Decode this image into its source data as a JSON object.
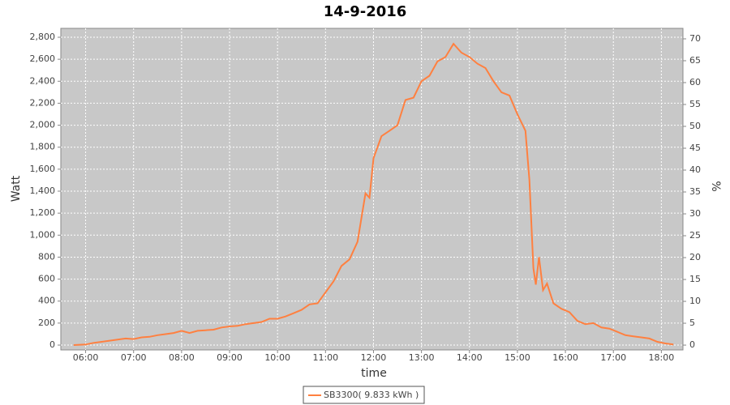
{
  "chart_data": {
    "type": "line",
    "title": "14-9-2016",
    "x_label": "time",
    "y_label": "Watt",
    "y2_label": "%",
    "x": [
      "05:45",
      "06:00",
      "06:10",
      "06:20",
      "06:30",
      "06:40",
      "06:50",
      "07:00",
      "07:10",
      "07:20",
      "07:30",
      "07:40",
      "07:50",
      "08:00",
      "08:10",
      "08:20",
      "08:30",
      "08:40",
      "08:50",
      "09:00",
      "09:10",
      "09:20",
      "09:30",
      "09:40",
      "09:50",
      "10:00",
      "10:10",
      "10:20",
      "10:30",
      "10:40",
      "10:50",
      "11:00",
      "11:10",
      "11:20",
      "11:30",
      "11:40",
      "11:50",
      "11:55",
      "12:00",
      "12:10",
      "12:20",
      "12:30",
      "12:40",
      "12:50",
      "13:00",
      "13:10",
      "13:20",
      "13:30",
      "13:40",
      "13:50",
      "14:00",
      "14:10",
      "14:20",
      "14:30",
      "14:40",
      "14:50",
      "15:00",
      "15:10",
      "15:15",
      "15:20",
      "15:23",
      "15:27",
      "15:32",
      "15:37",
      "15:45",
      "15:55",
      "16:05",
      "16:15",
      "16:25",
      "16:35",
      "16:45",
      "16:55",
      "17:05",
      "17:15",
      "17:25",
      "17:35",
      "17:45",
      "17:55",
      "18:05",
      "18:15"
    ],
    "series": [
      {
        "name": "SB3300( 9.833 kWh )",
        "color": "#ff8040",
        "values": [
          0,
          5,
          20,
          30,
          40,
          50,
          60,
          55,
          70,
          75,
          90,
          100,
          110,
          130,
          110,
          130,
          135,
          140,
          160,
          170,
          175,
          190,
          200,
          210,
          240,
          240,
          260,
          290,
          320,
          370,
          380,
          480,
          580,
          720,
          780,
          940,
          1380,
          1340,
          1700,
          1900,
          1950,
          2000,
          2230,
          2250,
          2400,
          2450,
          2580,
          2620,
          2740,
          2660,
          2620,
          2560,
          2520,
          2400,
          2300,
          2270,
          2100,
          1950,
          1500,
          700,
          550,
          800,
          500,
          560,
          380,
          330,
          300,
          220,
          190,
          200,
          160,
          150,
          120,
          90,
          80,
          70,
          60,
          30,
          15,
          5
        ]
      }
    ],
    "xlim": [
      "05:29",
      "18:27"
    ],
    "xticks": [
      "06:00",
      "07:00",
      "08:00",
      "09:00",
      "10:00",
      "11:00",
      "12:00",
      "13:00",
      "14:00",
      "15:00",
      "16:00",
      "17:00",
      "18:00"
    ],
    "ylim": [
      -44,
      2881
    ],
    "yticks": [
      0,
      200,
      400,
      600,
      800,
      {
        "value": 1000,
        "label": "1,000"
      },
      {
        "value": 1200,
        "label": "1,200"
      },
      {
        "value": 1400,
        "label": "1,400"
      },
      {
        "value": 1600,
        "label": "1,600"
      },
      {
        "value": 1800,
        "label": "1,800"
      },
      {
        "value": 2000,
        "label": "2,000"
      },
      {
        "value": 2200,
        "label": "2,200"
      },
      {
        "value": 2400,
        "label": "2,400"
      },
      {
        "value": 2600,
        "label": "2,600"
      },
      {
        "value": 2800,
        "label": "2,800"
      }
    ],
    "y2lim": [
      -1.1,
      72.4
    ],
    "y2ticks": [
      0,
      5,
      10,
      15,
      20,
      25,
      30,
      35,
      40,
      45,
      50,
      55,
      60,
      65,
      70
    ],
    "grid": true
  }
}
